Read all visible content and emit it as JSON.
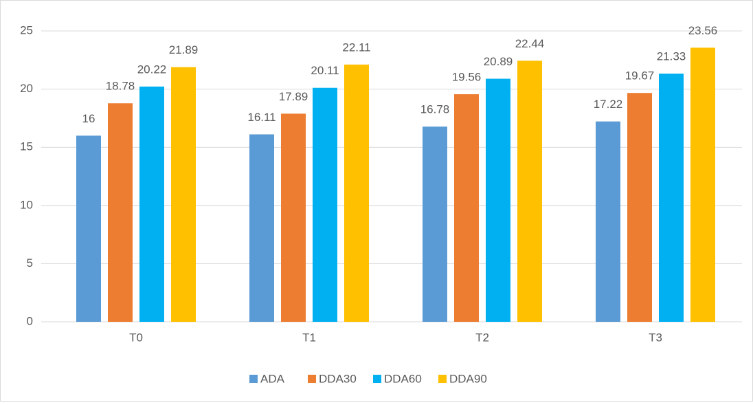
{
  "chart_data": {
    "type": "bar",
    "categories": [
      "T0",
      "T1",
      "T2",
      "T3"
    ],
    "series": [
      {
        "name": "ADA",
        "color": "#5b9bd5",
        "values": [
          16,
          16.11,
          16.78,
          17.22
        ]
      },
      {
        "name": "DDA30",
        "color": "#ed7d31",
        "values": [
          18.78,
          17.89,
          19.56,
          19.67
        ]
      },
      {
        "name": "DDA60",
        "color": "#00b0f0",
        "values": [
          20.22,
          20.11,
          20.89,
          21.33
        ]
      },
      {
        "name": "DDA90",
        "color": "#ffc000",
        "values": [
          21.89,
          22.11,
          22.44,
          23.56
        ]
      }
    ],
    "ylim": [
      0,
      25
    ],
    "yticks": [
      0,
      5,
      10,
      15,
      20,
      25
    ],
    "grid": true,
    "legend": "bottom"
  }
}
